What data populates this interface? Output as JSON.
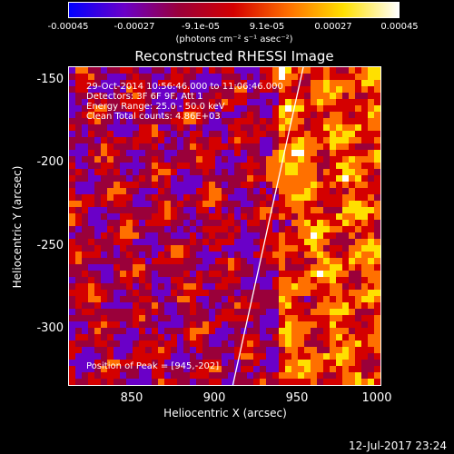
{
  "colorbar": {
    "ticks": [
      "-0.00045",
      "-0.00027",
      "-9.1e-05",
      "9.1e-05",
      "0.00027",
      "0.00045"
    ],
    "units": "(photons cm⁻² s⁻¹ asec⁻²)",
    "colors": [
      "#0000ff",
      "#6a00c8",
      "#9a003a",
      "#d40000",
      "#ff7000",
      "#ffe000",
      "#ffffff"
    ]
  },
  "title": "Reconstructed RHESSI Image",
  "info": {
    "line1": "29-Oct-2014 10:56:46.000 to 11:06:46.000",
    "line2": "Detectors: 3F 6F 9F, Att 1",
    "line3": "Energy Range: 25.0 - 50.0 keV",
    "line4": "Clean    Total counts: 4.86E+03"
  },
  "peak_text": "Position of Peak = [945,-202]",
  "axes": {
    "xlabel": "Heliocentric X (arcsec)",
    "ylabel": "Heliocentric Y (arcsec)",
    "xticks": [
      "850",
      "900",
      "950",
      "1000"
    ],
    "yticks": [
      "-150",
      "-200",
      "-250",
      "-300"
    ],
    "xrange": [
      814,
      1004
    ],
    "yrange": [
      -334,
      -140
    ]
  },
  "timestamp": "12-Jul-2017 23:24"
}
